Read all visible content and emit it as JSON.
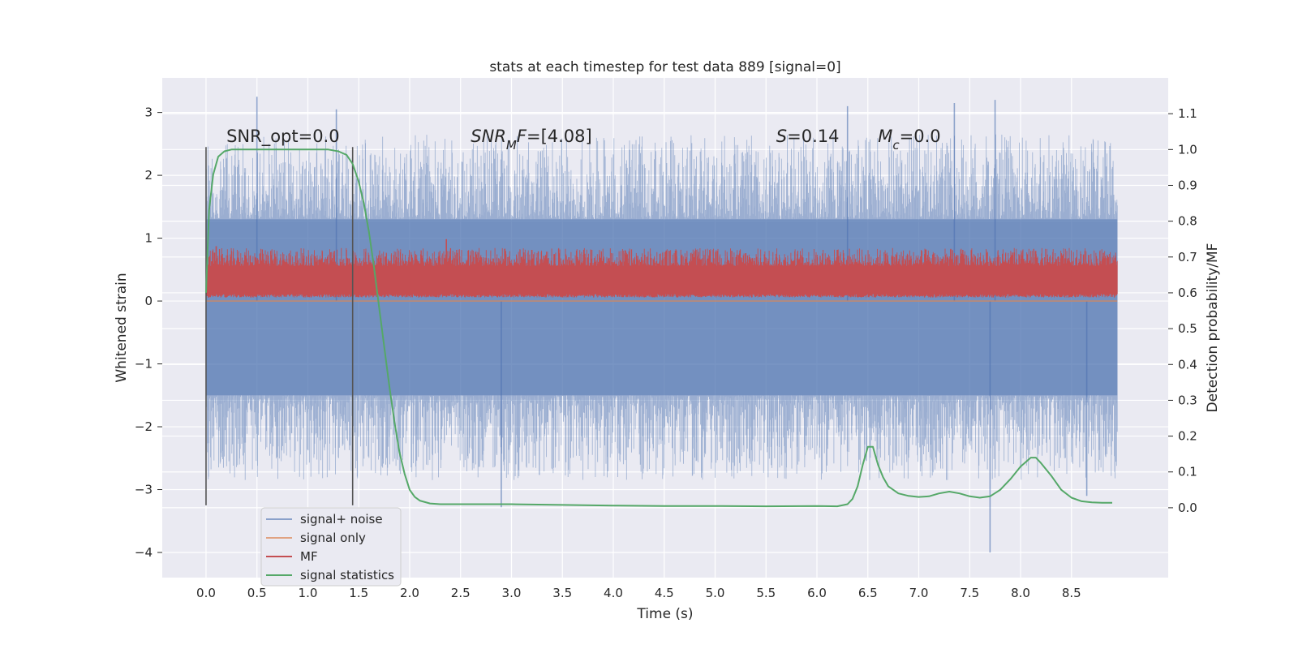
{
  "chart_data": {
    "type": "line",
    "title": "stats at each timestep for test data 889 [signal=0]",
    "xlabel": "Time (s)",
    "ylabel": "Whitened strain",
    "y2label": "Detection probability/MF",
    "xlim": [
      -0.43,
      9.45
    ],
    "ylim": [
      -4.4,
      3.55
    ],
    "y2lim": [
      -0.195,
      1.2
    ],
    "x_ticks": [
      "0.0",
      "0.5",
      "1.0",
      "1.5",
      "2.0",
      "2.5",
      "3.0",
      "3.5",
      "4.0",
      "4.5",
      "5.0",
      "5.5",
      "6.0",
      "6.5",
      "7.0",
      "7.5",
      "8.0",
      "8.5"
    ],
    "y_ticks": [
      "3",
      "2",
      "1",
      "0",
      "−1",
      "−2",
      "−3",
      "−4"
    ],
    "y2_ticks": [
      "1.1",
      "1.0",
      "0.9",
      "0.8",
      "0.7",
      "0.6",
      "0.5",
      "0.4",
      "0.3",
      "0.2",
      "0.1",
      "0.0"
    ],
    "grid": true,
    "legend_position": "lower-left",
    "colors": {
      "signal_noise": "#4c72b0",
      "signal_only": "#dd8452",
      "mf": "#c44e52",
      "signal_statistics": "#55a868",
      "vline": "#555555",
      "background": "#eaeaf2",
      "grid": "#ffffff"
    },
    "series": [
      {
        "name": "signal+ noise",
        "axis": "left",
        "style": "noise band",
        "band_lower": -1.5,
        "band_upper": 1.3,
        "extreme_values": [
          {
            "x": 0.5,
            "y": 3.25
          },
          {
            "x": 1.28,
            "y": 3.05
          },
          {
            "x": 2.9,
            "y": -3.28
          },
          {
            "x": 6.3,
            "y": 3.1
          },
          {
            "x": 7.35,
            "y": 3.15
          },
          {
            "x": 7.7,
            "y": -4.0
          },
          {
            "x": 7.75,
            "y": 3.2
          },
          {
            "x": 8.65,
            "y": -3.1
          }
        ]
      },
      {
        "name": "signal only",
        "axis": "left",
        "x": [
          0.0,
          8.95
        ],
        "y": [
          0.0,
          0.0
        ]
      },
      {
        "name": "MF",
        "axis": "right",
        "style": "noise band",
        "band_lower": 0.597,
        "band_upper": 0.675,
        "peak_values": [
          {
            "x": 0.1,
            "y": 0.73
          },
          {
            "x": 2.36,
            "y": 0.75
          },
          {
            "x": 3.2,
            "y": 0.72
          },
          {
            "x": 6.2,
            "y": 0.72
          }
        ]
      },
      {
        "name": "signal statistics",
        "axis": "right",
        "x": [
          0.0,
          0.03,
          0.07,
          0.12,
          0.18,
          0.25,
          0.3,
          0.4,
          0.6,
          0.8,
          1.0,
          1.2,
          1.3,
          1.38,
          1.44,
          1.5,
          1.55,
          1.6,
          1.65,
          1.7,
          1.75,
          1.8,
          1.85,
          1.9,
          1.95,
          2.0,
          2.05,
          2.1,
          2.2,
          2.3,
          2.5,
          3.0,
          3.5,
          4.0,
          4.5,
          5.0,
          5.5,
          6.0,
          6.2,
          6.3,
          6.35,
          6.4,
          6.45,
          6.5,
          6.55,
          6.6,
          6.65,
          6.7,
          6.8,
          6.9,
          7.0,
          7.1,
          7.2,
          7.3,
          7.4,
          7.5,
          7.6,
          7.7,
          7.8,
          7.9,
          8.0,
          8.1,
          8.15,
          8.2,
          8.3,
          8.4,
          8.5,
          8.6,
          8.7,
          8.8,
          8.9
        ],
        "y": [
          0.6,
          0.83,
          0.93,
          0.98,
          0.995,
          1.0,
          1.0,
          1.0,
          1.0,
          1.0,
          1.0,
          1.0,
          0.995,
          0.985,
          0.96,
          0.91,
          0.85,
          0.77,
          0.67,
          0.56,
          0.45,
          0.34,
          0.24,
          0.155,
          0.095,
          0.05,
          0.03,
          0.02,
          0.012,
          0.01,
          0.01,
          0.01,
          0.008,
          0.006,
          0.005,
          0.005,
          0.004,
          0.005,
          0.004,
          0.01,
          0.025,
          0.06,
          0.12,
          0.17,
          0.17,
          0.12,
          0.085,
          0.06,
          0.04,
          0.033,
          0.03,
          0.032,
          0.04,
          0.045,
          0.04,
          0.032,
          0.028,
          0.032,
          0.05,
          0.08,
          0.115,
          0.14,
          0.14,
          0.125,
          0.09,
          0.05,
          0.028,
          0.018,
          0.015,
          0.014,
          0.014
        ]
      }
    ],
    "vertical_lines": [
      {
        "x": 0.0,
        "y_from": -3.25,
        "y_to": 2.45
      },
      {
        "x": 1.44,
        "y_from": -3.25,
        "y_to": 2.45
      }
    ],
    "annotations": [
      {
        "segments": [
          {
            "t": "SNR_opt=0.0",
            "style": "normal"
          }
        ],
        "x": 0.2,
        "y": 2.45
      },
      {
        "segments": [
          {
            "t": "SNR",
            "style": "italic"
          },
          {
            "t": "M",
            "style": "sub-italic"
          },
          {
            "t": "F",
            "style": "italic"
          },
          {
            "t": "=[4.08]",
            "style": "normal"
          }
        ],
        "x": 2.6,
        "y": 2.45
      },
      {
        "segments": [
          {
            "t": "S",
            "style": "italic"
          },
          {
            "t": "=0.14",
            "style": "normal"
          }
        ],
        "x": 5.6,
        "y": 2.45
      },
      {
        "segments": [
          {
            "t": "M",
            "style": "italic"
          },
          {
            "t": "c",
            "style": "sub-italic"
          },
          {
            "t": "=0.0",
            "style": "normal"
          }
        ],
        "x": 6.6,
        "y": 2.45
      }
    ]
  }
}
